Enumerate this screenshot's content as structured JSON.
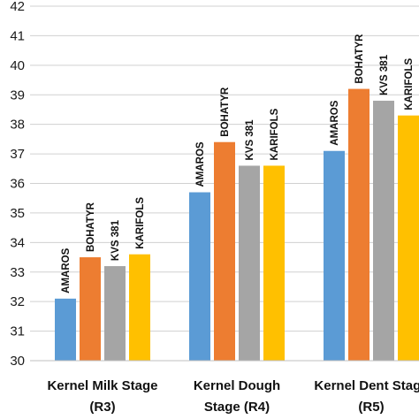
{
  "chart_data": {
    "type": "bar",
    "title": "",
    "xlabel": "",
    "ylabel": "",
    "ylim": [
      30,
      42
    ],
    "yticks": [
      30,
      31,
      32,
      33,
      34,
      35,
      36,
      37,
      38,
      39,
      40,
      41,
      42
    ],
    "grid": true,
    "categories": [
      [
        "Kernel Milk Stage",
        "(R3)"
      ],
      [
        "Kernel Dough",
        "Stage (R4)"
      ],
      [
        "Kernel Dent Stage",
        "(R5)"
      ]
    ],
    "series": [
      {
        "name": "AMAROS",
        "color": "#5b9bd5",
        "values": [
          32.1,
          35.7,
          37.1
        ]
      },
      {
        "name": "BOHATYR",
        "color": "#ed7d31",
        "values": [
          33.5,
          37.4,
          39.2
        ]
      },
      {
        "name": "KVS 381",
        "color": "#a5a5a5",
        "values": [
          33.2,
          36.6,
          38.8
        ]
      },
      {
        "name": "KARIFOLS",
        "color": "#ffc000",
        "values": [
          33.6,
          36.6,
          38.3
        ]
      }
    ],
    "value_labels": "series-name-above-bar"
  }
}
